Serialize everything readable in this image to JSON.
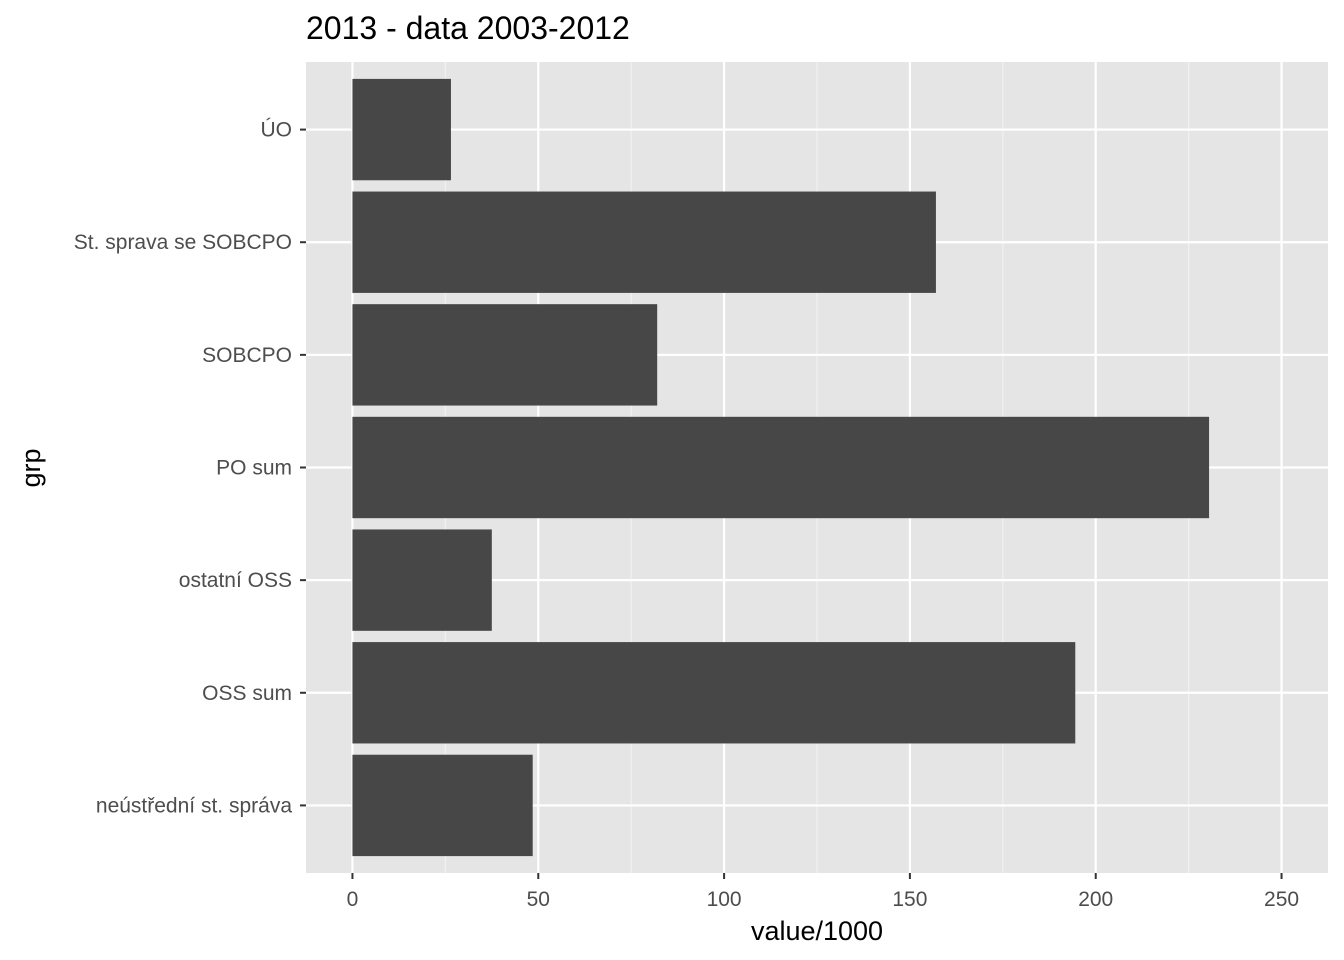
{
  "chart_data": {
    "type": "bar",
    "orientation": "horizontal",
    "title": "2013 - data 2003-2012",
    "xlabel": "value/1000",
    "ylabel": "grp",
    "categories": [
      "neústřední st. správa",
      "OSS sum",
      "ostatní OSS",
      "PO sum",
      "SOBCPO",
      "St. sprava se SOBCPO",
      "ÚO"
    ],
    "values": [
      48.5,
      194.5,
      37.5,
      230.5,
      82.0,
      157.0,
      26.5
    ],
    "xlim": [
      -12.5,
      262.5
    ],
    "x_ticks": [
      0,
      50,
      100,
      150,
      200,
      250
    ],
    "x_tick_labels": [
      "0",
      "50",
      "100",
      "150",
      "200",
      "250"
    ],
    "grid": true,
    "legend": "none",
    "colors": {
      "bar": "#474747",
      "panel_background": "#E5E5E5",
      "grid_major": "#FFFFFF",
      "grid_minor": "#F2F2F2",
      "tick_text": "#4D4D4D",
      "tick_mark": "#333333"
    }
  }
}
